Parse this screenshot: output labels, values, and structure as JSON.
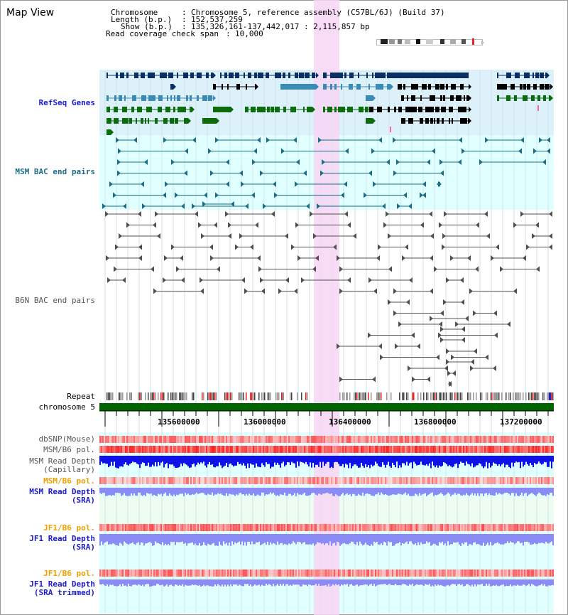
{
  "view_title": "Map View",
  "info": {
    "chromosome_key": "Chromosome",
    "chromosome_value": "Chromosome 5, reference assembly (C57BL/6J) (Build 37)",
    "length_key": "Length (b.p.)",
    "length_value": "152,537,259",
    "show_key": "Show (b.p.)",
    "show_value": "135,326,161-137,442,017 : 2,115,857 bp",
    "coverage_key": "Read coverage check span",
    "coverage_value": "10,000"
  },
  "tracks": {
    "refseq": "RefSeq Genes",
    "msm_bac": "MSM BAC end pairs",
    "b6n_bac": "B6N BAC end pairs",
    "repeat": "Repeat",
    "chromosome": "chromosome 5",
    "dbsnp": "dbSNP(Mouse)",
    "msm_b6_pol": "MSM/B6 pol.",
    "msm_depth_cap_1": "MSM Read Depth",
    "msm_depth_cap_2": "(Capillary)",
    "msm_b6_pol_2": "MSM/B6 pol.",
    "msm_depth_sra_1": "MSM Read Depth",
    "msm_depth_sra_2": "(SRA)",
    "jf1_b6_pol": "JF1/B6 pol.",
    "jf1_depth_sra_1": "JF1 Read Depth",
    "jf1_depth_sra_2": "(SRA)",
    "jf1_b6_pol_2": "JF1/B6 pol.",
    "jf1_depth_trim_1": "JF1 Read Depth",
    "jf1_depth_trim_2": "(SRA trimmed)"
  },
  "ruler": {
    "ticks": [
      "135600000",
      "136000000",
      "136400000",
      "136800000",
      "137200000"
    ]
  },
  "colors": {
    "panel_cyan": "#e0ffff",
    "panel_blue": "#ddf1fb",
    "highlight": "#f7d6f4",
    "navy_gene": "#0b2f62",
    "teal_gene": "#3b8bb4",
    "green_gene": "#0c6b0c",
    "bac_teal": "#1d6d86",
    "bac_gray": "#505050",
    "chromosome_bar": "#006400",
    "depth_blue": "#1010e8",
    "depth_light": "#8b8bf5"
  }
}
